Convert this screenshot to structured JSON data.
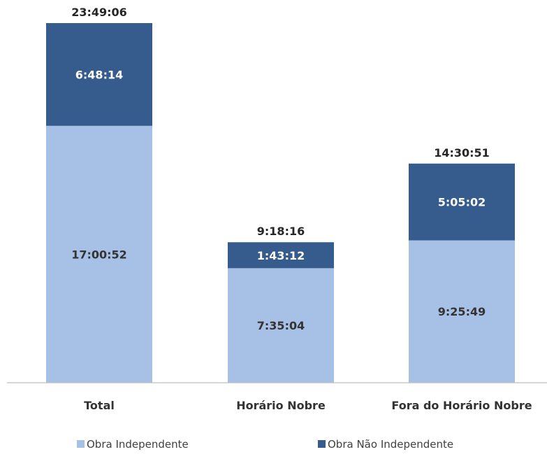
{
  "chart_data": {
    "type": "bar",
    "stacked": true,
    "categories": [
      "Total",
      "Horário Nobre",
      "Fora do Horário Nobre"
    ],
    "series": [
      {
        "name": "Obra Independente",
        "color": "#A6C0E6",
        "values": [
          "17:00:52",
          "7:35:04",
          "9:25:49"
        ],
        "values_seconds": [
          61252,
          27304,
          33949
        ]
      },
      {
        "name": "Obra Não Independente",
        "color": "#355C8C",
        "values": [
          "6:48:14",
          "1:43:12",
          "5:05:02"
        ],
        "values_seconds": [
          24494,
          6192,
          18302
        ]
      }
    ],
    "totals": [
      "23:49:06",
      "9:18:16",
      "14:30:51"
    ],
    "totals_seconds": [
      85746,
      33496,
      52251
    ],
    "title": "",
    "xlabel": "",
    "ylabel": "",
    "grid": false,
    "legend_position": "bottom",
    "label_colors": {
      "light": "#333333",
      "dark": "#FFFFFF",
      "total": "#262626"
    }
  }
}
